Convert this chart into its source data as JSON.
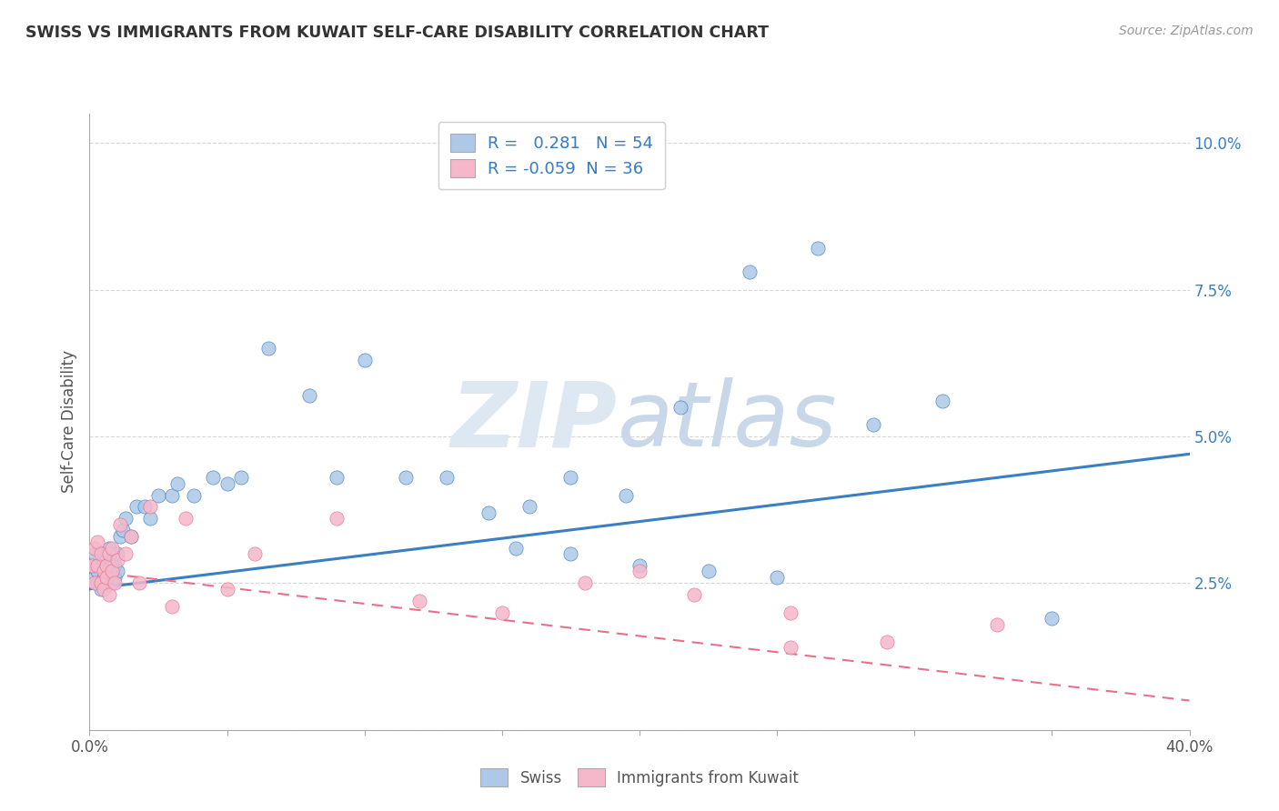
{
  "title": "SWISS VS IMMIGRANTS FROM KUWAIT SELF-CARE DISABILITY CORRELATION CHART",
  "source": "Source: ZipAtlas.com",
  "ylabel": "Self-Care Disability",
  "xlim": [
    0.0,
    0.4
  ],
  "ylim": [
    0.0,
    0.105
  ],
  "yticks": [
    0.0,
    0.025,
    0.05,
    0.075,
    0.1
  ],
  "ytick_labels": [
    "",
    "2.5%",
    "5.0%",
    "7.5%",
    "10.0%"
  ],
  "xtick_labels": [
    "0.0%",
    "",
    "",
    "",
    "",
    "",
    "",
    "",
    "40.0%"
  ],
  "swiss_R": 0.281,
  "swiss_N": 54,
  "kuwait_R": -0.059,
  "kuwait_N": 36,
  "swiss_color": "#adc8e8",
  "kuwait_color": "#f5b8cb",
  "swiss_line_color": "#3a7fc1",
  "kuwait_line_color": "#e8708a",
  "background_color": "#ffffff",
  "grid_color": "#cccccc",
  "watermark_zip": "ZIP",
  "watermark_atlas": "atlas",
  "swiss_x": [
    0.001,
    0.002,
    0.002,
    0.003,
    0.003,
    0.004,
    0.004,
    0.005,
    0.005,
    0.006,
    0.006,
    0.007,
    0.007,
    0.008,
    0.008,
    0.009,
    0.009,
    0.01,
    0.01,
    0.011,
    0.012,
    0.013,
    0.015,
    0.017,
    0.02,
    0.022,
    0.025,
    0.03,
    0.032,
    0.038,
    0.045,
    0.05,
    0.055,
    0.065,
    0.08,
    0.09,
    0.1,
    0.115,
    0.13,
    0.145,
    0.16,
    0.175,
    0.195,
    0.215,
    0.24,
    0.265,
    0.285,
    0.31,
    0.155,
    0.175,
    0.2,
    0.225,
    0.25,
    0.35
  ],
  "swiss_y": [
    0.028,
    0.026,
    0.03,
    0.025,
    0.027,
    0.024,
    0.028,
    0.026,
    0.03,
    0.025,
    0.029,
    0.027,
    0.031,
    0.025,
    0.029,
    0.028,
    0.026,
    0.03,
    0.027,
    0.033,
    0.034,
    0.036,
    0.033,
    0.038,
    0.038,
    0.036,
    0.04,
    0.04,
    0.042,
    0.04,
    0.043,
    0.042,
    0.043,
    0.065,
    0.057,
    0.043,
    0.063,
    0.043,
    0.043,
    0.037,
    0.038,
    0.043,
    0.04,
    0.055,
    0.078,
    0.082,
    0.052,
    0.056,
    0.031,
    0.03,
    0.028,
    0.027,
    0.026,
    0.019
  ],
  "kuwait_x": [
    0.001,
    0.002,
    0.002,
    0.003,
    0.003,
    0.004,
    0.004,
    0.005,
    0.005,
    0.006,
    0.006,
    0.007,
    0.007,
    0.008,
    0.008,
    0.009,
    0.01,
    0.011,
    0.013,
    0.015,
    0.018,
    0.022,
    0.035,
    0.06,
    0.09,
    0.12,
    0.15,
    0.18,
    0.22,
    0.255,
    0.29,
    0.33,
    0.2,
    0.255,
    0.03,
    0.05
  ],
  "kuwait_y": [
    0.028,
    0.031,
    0.025,
    0.028,
    0.032,
    0.025,
    0.03,
    0.027,
    0.024,
    0.028,
    0.026,
    0.03,
    0.023,
    0.027,
    0.031,
    0.025,
    0.029,
    0.035,
    0.03,
    0.033,
    0.025,
    0.038,
    0.036,
    0.03,
    0.036,
    0.022,
    0.02,
    0.025,
    0.023,
    0.02,
    0.015,
    0.018,
    0.027,
    0.014,
    0.021,
    0.024
  ]
}
